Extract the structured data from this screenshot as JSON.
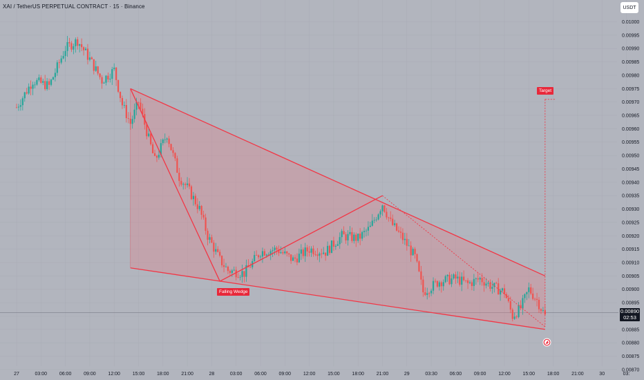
{
  "header": {
    "title": "XAI / TetherUS PERPETUAL CONTRACT · 15 · Binance",
    "currency_button": "USDT"
  },
  "price_tag": {
    "price": "0.00890",
    "countdown": "02:53"
  },
  "annotations": {
    "falling_wedge": "Falling Wedge",
    "target": "Target"
  },
  "colors": {
    "background": "#b2b5be",
    "up": "#26a69a",
    "down": "#ef5350",
    "wedge_line": "#f23645",
    "wedge_fill": "#e0828c",
    "label_bg": "#e8283a"
  },
  "chart_data": {
    "type": "candlestick",
    "symbol": "XAI / TetherUS PERPETUAL CONTRACT",
    "interval": "15",
    "exchange": "Binance",
    "last_price": 0.0089,
    "ylim": [
      0.00868,
      0.01004
    ],
    "y_ticks": [
      "0.01000",
      "0.00995",
      "0.00990",
      "0.00985",
      "0.00980",
      "0.00975",
      "0.00970",
      "0.00965",
      "0.00960",
      "0.00955",
      "0.00950",
      "0.00945",
      "0.00940",
      "0.00935",
      "0.00930",
      "0.00925",
      "0.00920",
      "0.00915",
      "0.00910",
      "0.00905",
      "0.00900",
      "0.00895",
      "0.00890",
      "0.00885",
      "0.00880",
      "0.00875",
      "0.00870"
    ],
    "x_ticks": [
      "27",
      "03:00",
      "06:00",
      "09:00",
      "12:00",
      "15:00",
      "18:00",
      "21:00",
      "28",
      "03:00",
      "06:00",
      "09:00",
      "12:00",
      "15:00",
      "18:00",
      "21:00",
      "29",
      "03:30",
      "06:00",
      "09:00",
      "12:00",
      "15:00",
      "18:00",
      "21:00",
      "30",
      "03:"
    ],
    "close_path": [
      [
        0,
        0.00968
      ],
      [
        2,
        0.00978
      ],
      [
        4,
        0.00976
      ],
      [
        6,
        0.0099
      ],
      [
        7.5,
        0.00993
      ],
      [
        9,
        0.00986
      ],
      [
        10.5,
        0.00978
      ],
      [
        12,
        0.00982
      ],
      [
        13,
        0.00969
      ],
      [
        14,
        0.00962
      ],
      [
        15,
        0.0097
      ],
      [
        17,
        0.00948
      ],
      [
        18.5,
        0.00958
      ],
      [
        20,
        0.00942
      ],
      [
        21,
        0.00938
      ],
      [
        22.5,
        0.0093
      ],
      [
        23.5,
        0.0092
      ],
      [
        25,
        0.00911
      ],
      [
        26,
        0.00907
      ],
      [
        28,
        0.00906
      ],
      [
        30,
        0.00914
      ],
      [
        32,
        0.00915
      ],
      [
        34,
        0.00911
      ],
      [
        36,
        0.00915
      ],
      [
        38,
        0.00914
      ],
      [
        40,
        0.0092
      ],
      [
        42,
        0.00919
      ],
      [
        43.5,
        0.00923
      ],
      [
        45,
        0.00932
      ],
      [
        46,
        0.00925
      ],
      [
        47.5,
        0.00919
      ],
      [
        49,
        0.00912
      ],
      [
        50,
        0.00899
      ],
      [
        52,
        0.00903
      ],
      [
        54,
        0.00904
      ],
      [
        55.5,
        0.00902
      ],
      [
        57,
        0.00904
      ],
      [
        58.5,
        0.00901
      ],
      [
        60,
        0.00899
      ],
      [
        61,
        0.0089
      ],
      [
        62,
        0.00893
      ],
      [
        63,
        0.009
      ],
      [
        64,
        0.00896
      ],
      [
        65,
        0.0089
      ]
    ],
    "falling_wedge": {
      "upper_line": [
        [
          14,
          0.00975
        ],
        [
          65,
          0.00905
        ]
      ],
      "lower_line": [
        [
          14,
          0.00908
        ],
        [
          65,
          0.00885
        ]
      ],
      "zigzag": [
        [
          14,
          0.00975
        ],
        [
          25,
          0.00903
        ],
        [
          45,
          0.00935
        ],
        [
          65,
          0.00886
        ]
      ],
      "target_price": 0.00971,
      "target_x": 65
    }
  }
}
